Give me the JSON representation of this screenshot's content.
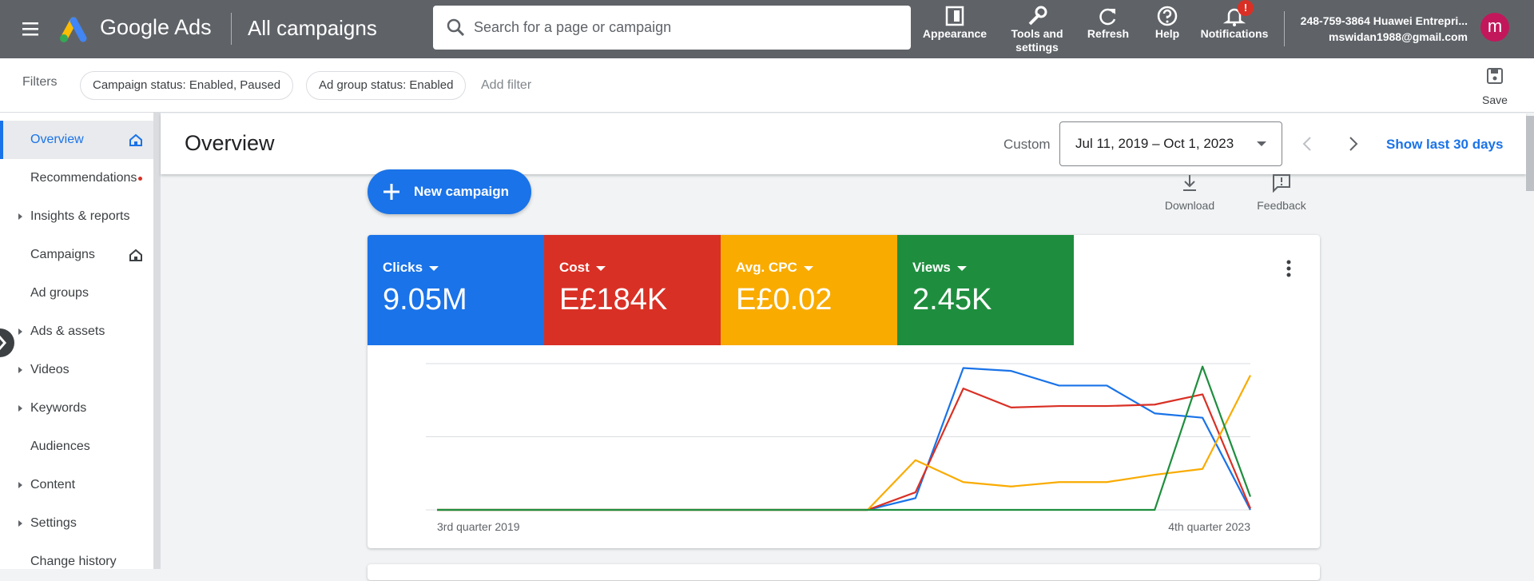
{
  "top_bar": {
    "product": "Google Ads",
    "page_title": "All campaigns",
    "search_placeholder": "Search for a page or campaign",
    "actions": [
      "Appearance",
      "Tools and settings",
      "Refresh",
      "Help",
      "Notifications"
    ],
    "notification_badge": "!",
    "account_id": "248-759-3864 Huawei Entrepri...",
    "account_email": "mswidan1988@gmail.com",
    "avatar": "m"
  },
  "filters": {
    "label": "Filters",
    "chips": [
      "Campaign status: Enabled, Paused",
      "Ad group status: Enabled"
    ],
    "add": "Add filter",
    "save": "Save"
  },
  "nav": {
    "items": [
      "Overview",
      "Recommendations",
      "Insights & reports",
      "Campaigns",
      "Ad groups",
      "Ads & assets",
      "Videos",
      "Keywords",
      "Audiences",
      "Content",
      "Settings",
      "Change history"
    ]
  },
  "header": {
    "title": "Overview",
    "range_label": "Custom",
    "date_range": "Jul 11, 2019 – Oct 1, 2023",
    "show_last": "Show last 30 days"
  },
  "toolbar": {
    "new_campaign": "New campaign",
    "download": "Download",
    "feedback": "Feedback"
  },
  "scorecards": [
    "9.05M",
    "E£184K",
    "E£0.02",
    "2.45K"
  ],
  "chart_data": {
    "type": "line",
    "categories": [
      "3rd quarter 2019",
      null,
      null,
      null,
      null,
      null,
      null,
      null,
      null,
      null,
      null,
      null,
      null,
      null,
      null,
      null,
      null,
      "4th quarter 2023"
    ],
    "series": [
      {
        "name": "Clicks",
        "color": "#1a73e8",
        "values": [
          0,
          0,
          0,
          0,
          0,
          0,
          0,
          0,
          0,
          0,
          8,
          97,
          95,
          85,
          85,
          66,
          63,
          0
        ]
      },
      {
        "name": "Cost",
        "color": "#d93025",
        "values": [
          0,
          0,
          0,
          0,
          0,
          0,
          0,
          0,
          0,
          0,
          12,
          83,
          70,
          71,
          71,
          72,
          79,
          1
        ]
      },
      {
        "name": "Avg. CPC",
        "color": "#f9ab00",
        "values": [
          0,
          0,
          0,
          0,
          0,
          0,
          0,
          0,
          0,
          0,
          34,
          19,
          16,
          19,
          19,
          24,
          28,
          92
        ]
      },
      {
        "name": "Views",
        "color": "#1e8e3e",
        "values": [
          0,
          0,
          0,
          0,
          0,
          0,
          0,
          0,
          0,
          0,
          0,
          0,
          0,
          0,
          0,
          0,
          98,
          9
        ]
      }
    ],
    "ylim": [
      0,
      100
    ],
    "yticks": [
      0,
      50,
      100
    ],
    "grid": true
  }
}
